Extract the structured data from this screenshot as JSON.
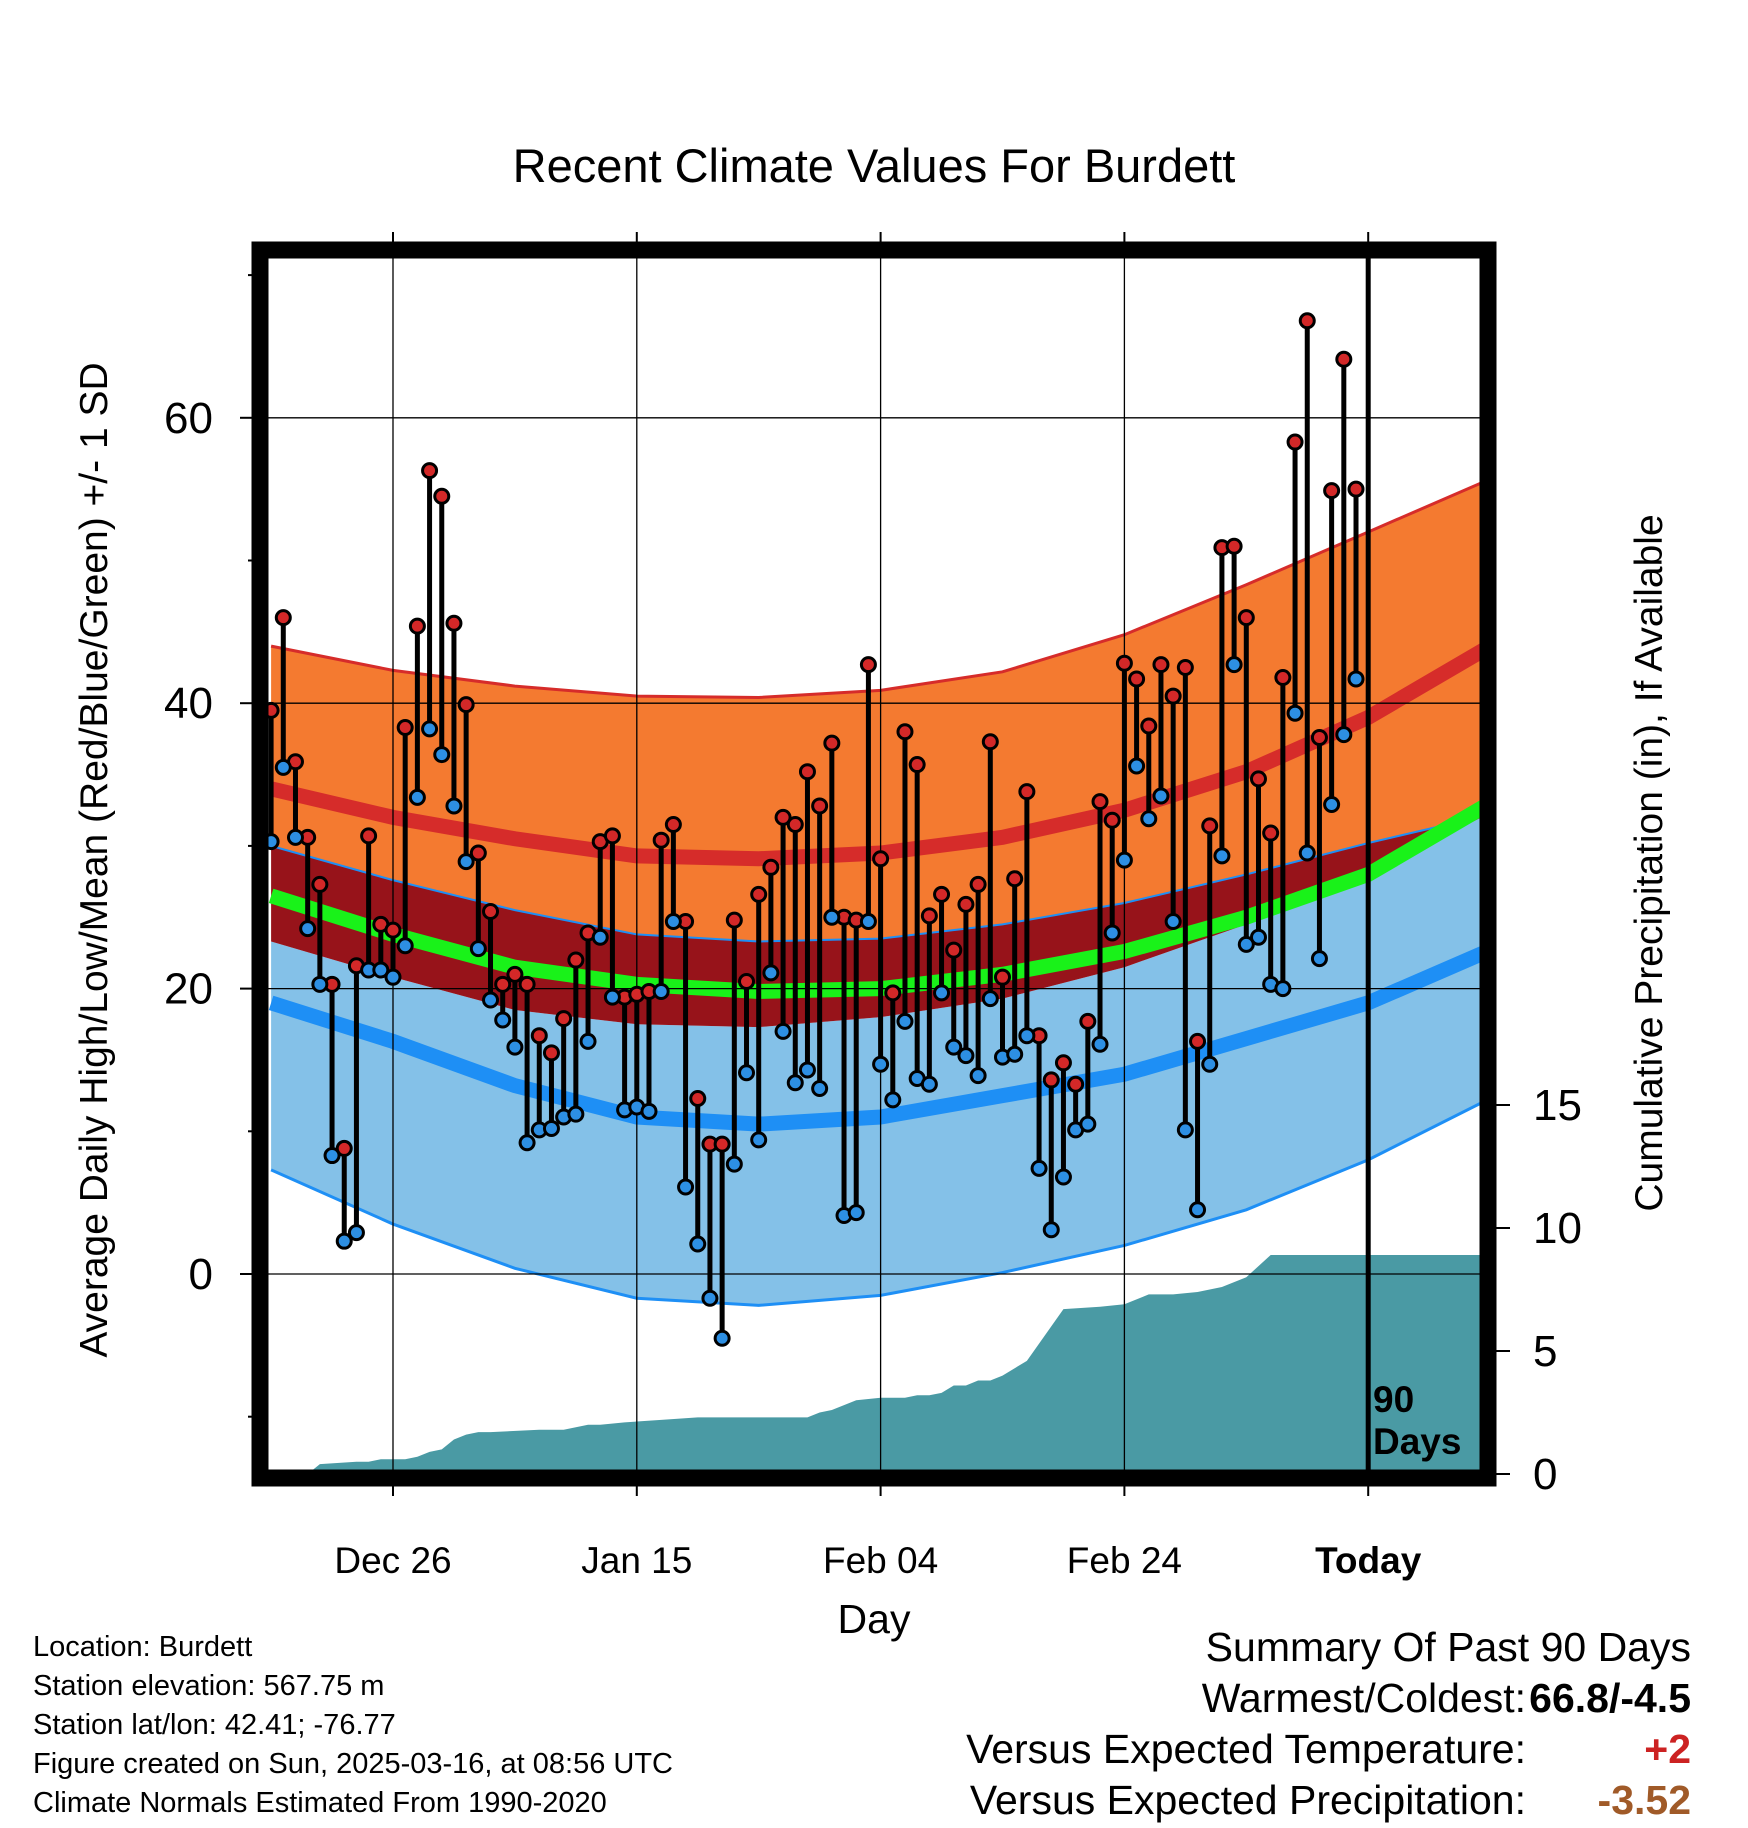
{
  "chart_data": {
    "type": "line",
    "title": "Recent Climate Values For Burdett",
    "xlabel": "Day",
    "ylabel": "Average Daily High/Low/Mean (Red/Blue/Green) +/- 1 SD",
    "y2label": "Cumulative Precipitation (in), If Available",
    "xlim": [
      -10,
      90
    ],
    "ylim": [
      -14,
      72
    ],
    "y2lim": [
      0,
      35
    ],
    "grid": true,
    "x_tick_positions": [
      0,
      20,
      40,
      60,
      80
    ],
    "x_tick_labels": [
      "Dec 26",
      "Jan 15",
      "Feb 04",
      "Feb 24",
      "Today"
    ],
    "y_ticks": [
      0,
      20,
      40,
      60
    ],
    "y2_ticks": [
      0,
      5,
      10,
      15
    ],
    "today_x": 80,
    "days_annotation": "90\nDays",
    "normals": {
      "x": [
        -10,
        0,
        10,
        20,
        30,
        40,
        50,
        60,
        70,
        80,
        90
      ],
      "high_mean": [
        34,
        32,
        30.5,
        29.3,
        29.1,
        29.5,
        30.6,
        32.5,
        35.2,
        39,
        44
      ],
      "high_upper": [
        44,
        42.3,
        41.2,
        40.5,
        40.4,
        40.9,
        42.2,
        44.8,
        48.3,
        52,
        55.7
      ],
      "high_lower": [
        30,
        27.6,
        25.5,
        23.8,
        23.3,
        23.5,
        24.5,
        26,
        28,
        30.2,
        32.2
      ],
      "avg_mean": [
        26.5,
        23.8,
        21.5,
        20.3,
        19.8,
        20,
        21,
        22.6,
        25,
        28,
        33
      ],
      "low_mean": [
        19,
        16.3,
        13.2,
        11,
        10.5,
        11,
        12.5,
        14,
        16.5,
        19,
        22.7
      ],
      "low_upper": [
        23.3,
        20.8,
        18.5,
        17.5,
        17.3,
        18,
        19.3,
        21.5,
        24.5,
        28,
        32.3
      ],
      "low_lower": [
        7.3,
        3.5,
        0.4,
        -1.7,
        -2.2,
        -1.5,
        0.1,
        2,
        4.5,
        8,
        12.3
      ]
    },
    "series": [
      {
        "name": "High",
        "x": [
          -10,
          -9,
          -8,
          -7,
          -6,
          -5,
          -4,
          -3,
          -2,
          -1,
          0,
          1,
          2,
          3,
          4,
          5,
          6,
          7,
          8,
          9,
          10,
          11,
          12,
          13,
          14,
          15,
          16,
          17,
          18,
          19,
          20,
          21,
          22,
          23,
          24,
          25,
          26,
          27,
          28,
          29,
          30,
          31,
          32,
          33,
          34,
          35,
          36,
          37,
          38,
          39,
          40,
          41,
          42,
          43,
          44,
          45,
          46,
          47,
          48,
          49,
          50,
          51,
          52,
          53,
          54,
          55,
          56,
          57,
          58,
          59,
          60,
          61,
          62,
          63,
          64,
          65,
          66,
          67,
          68,
          69,
          70,
          71,
          72,
          73,
          74,
          75,
          76,
          77,
          78,
          79
        ],
        "values": [
          39.5,
          46,
          35.9,
          30.6,
          27.3,
          20.3,
          8.8,
          21.6,
          30.7,
          24.5,
          24.1,
          38.3,
          45.4,
          56.3,
          54.5,
          45.6,
          39.9,
          29.5,
          25.4,
          20.3,
          21,
          20.3,
          16.7,
          15.5,
          17.9,
          22,
          23.9,
          30.3,
          30.7,
          19.4,
          19.6,
          19.8,
          30.4,
          31.5,
          24.7,
          12.3,
          9.1,
          9.1,
          24.8,
          20.5,
          26.6,
          28.5,
          32,
          31.5,
          35.2,
          32.8,
          37.2,
          25,
          24.8,
          42.7,
          29.1,
          19.7,
          38,
          35.7,
          25.1,
          26.6,
          22.7,
          25.9,
          27.3,
          37.3,
          20.8,
          27.7,
          33.8,
          16.7,
          13.6,
          14.8,
          13.3,
          17.7,
          33.1,
          31.8,
          42.8,
          41.7,
          38.4,
          42.7,
          40.5,
          42.5,
          16.3,
          31.4,
          50.9,
          51,
          46,
          34.7,
          30.9,
          41.8,
          58.3,
          66.8,
          37.6,
          54.9,
          64.1,
          55
        ]
      },
      {
        "name": "Low",
        "x": [
          -10,
          -9,
          -8,
          -7,
          -6,
          -5,
          -4,
          -3,
          -2,
          -1,
          0,
          1,
          2,
          3,
          4,
          5,
          6,
          7,
          8,
          9,
          10,
          11,
          12,
          13,
          14,
          15,
          16,
          17,
          18,
          19,
          20,
          21,
          22,
          23,
          24,
          25,
          26,
          27,
          28,
          29,
          30,
          31,
          32,
          33,
          34,
          35,
          36,
          37,
          38,
          39,
          40,
          41,
          42,
          43,
          44,
          45,
          46,
          47,
          48,
          49,
          50,
          51,
          52,
          53,
          54,
          55,
          56,
          57,
          58,
          59,
          60,
          61,
          62,
          63,
          64,
          65,
          66,
          67,
          68,
          69,
          70,
          71,
          72,
          73,
          74,
          75,
          76,
          77,
          78,
          79
        ],
        "values": [
          30.3,
          35.5,
          30.6,
          24.2,
          20.3,
          8.3,
          2.3,
          2.9,
          21.3,
          21.3,
          20.8,
          23,
          33.4,
          38.2,
          36.4,
          32.8,
          28.9,
          22.8,
          19.2,
          17.8,
          15.9,
          9.2,
          10.1,
          10.2,
          11,
          11.2,
          16.3,
          23.6,
          19.4,
          11.5,
          11.7,
          11.4,
          19.8,
          24.7,
          6.1,
          2.1,
          -1.7,
          -4.5,
          7.7,
          14.1,
          9.4,
          21.1,
          17,
          13.4,
          14.3,
          13,
          25,
          4.1,
          4.3,
          24.7,
          14.7,
          12.2,
          17.7,
          13.7,
          13.3,
          19.7,
          15.9,
          15.3,
          13.9,
          19.3,
          15.2,
          15.4,
          16.7,
          7.4,
          3.1,
          6.8,
          10.1,
          10.5,
          16.1,
          23.9,
          29,
          35.6,
          31.9,
          33.5,
          24.7,
          10.1,
          4.5,
          14.7,
          29.3,
          42.7,
          23.1,
          23.6,
          20.3,
          20,
          39.3,
          29.5,
          22.1,
          32.9,
          37.8,
          41.7
        ]
      },
      {
        "name": "Precipitation",
        "x": [
          -10,
          -7,
          -6,
          -3,
          -2,
          -1,
          1,
          2,
          3,
          4,
          5,
          6,
          7,
          8,
          12,
          13,
          14,
          15,
          16,
          17,
          19,
          22,
          25,
          28,
          30,
          31,
          32,
          33,
          34,
          35,
          36,
          38,
          40,
          41,
          42,
          43,
          44,
          45,
          46,
          47,
          48,
          49,
          50,
          51,
          52,
          55,
          58,
          60,
          62,
          64,
          66,
          67,
          68,
          69,
          70,
          72,
          75,
          79,
          90
        ],
        "values": [
          0,
          0,
          0.4,
          0.5,
          0.5,
          0.6,
          0.6,
          0.7,
          0.9,
          1,
          1.4,
          1.6,
          1.7,
          1.7,
          1.8,
          1.8,
          1.8,
          1.9,
          2,
          2,
          2.1,
          2.2,
          2.3,
          2.3,
          2.3,
          2.3,
          2.3,
          2.3,
          2.3,
          2.5,
          2.6,
          3,
          3.1,
          3.1,
          3.1,
          3.2,
          3.2,
          3.3,
          3.6,
          3.6,
          3.8,
          3.8,
          4,
          4.3,
          4.6,
          6.7,
          6.8,
          6.9,
          7.3,
          7.3,
          7.4,
          7.5,
          7.6,
          7.8,
          8,
          8.9,
          8.9,
          8.9,
          8.9
        ]
      }
    ]
  },
  "info": {
    "location": "Location: Burdett",
    "elevation": "Station elevation: 567.75 m",
    "latlon": "Station lat/lon: 42.41; -76.77",
    "created": "Figure created on Sun, 2025-03-16, at 08:56 UTC",
    "normals": "Climate Normals Estimated From 1990-2020"
  },
  "summary": {
    "heading": "Summary Of Past 90 Days",
    "warm_label": "Warmest/Coldest:",
    "warm_value": "66.8/-4.5",
    "temp_label": "Versus Expected Temperature:",
    "temp_value": "+2",
    "precip_label": "Versus Expected Precipitation:",
    "precip_value": "-3.52"
  },
  "colors": {
    "high_band": "#f47a30",
    "high_mean_line": "#d62c2a",
    "overlap_band": "#97131a",
    "mean_line": "#19f219",
    "low_band": "#84c1e8",
    "low_mean_line": "#1e8ff5",
    "precip_fill": "#4a9aa4",
    "high_dot": "#d32828",
    "low_dot": "#2d8fe3",
    "temp_value": "#cc2222",
    "precip_value": "#a05a28"
  }
}
